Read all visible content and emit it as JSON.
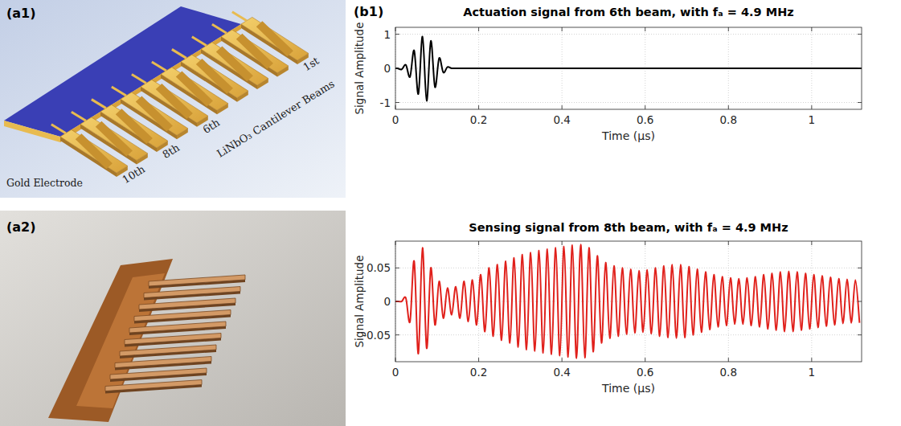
{
  "panels": {
    "a1": {
      "label": "(a1)",
      "electrode": "Gold Electrode",
      "beams_label": "LiNbO₃ Cantilever Beams",
      "beam_labels": [
        "10th",
        "8th",
        "6th",
        "1st"
      ]
    },
    "a2": {
      "label": "(a2)"
    },
    "b1": {
      "label": "(b1)"
    }
  },
  "chart_data": [
    {
      "type": "line",
      "title": "Actuation signal from 6th beam, with fₐ = 4.9 MHz",
      "xlabel": "Time (μs)",
      "ylabel": "Signal Amplitude",
      "x": [
        0,
        0.005,
        0.015,
        0.025,
        0.035,
        0.045,
        0.055,
        0.065,
        0.075,
        0.085,
        0.095,
        0.105,
        0.115,
        0.125,
        0.135,
        0.145,
        1.12
      ],
      "series": [
        {
          "color": "#000000",
          "values": [
            0,
            0,
            -0.03,
            0.1,
            -0.25,
            0.52,
            -0.75,
            0.93,
            -0.95,
            0.8,
            -0.55,
            0.3,
            -0.12,
            0.04,
            0,
            0,
            0
          ]
        }
      ],
      "xlim": [
        0,
        1.12
      ],
      "ylim": [
        -1.2,
        1.2
      ],
      "xticks": [
        0,
        0.2,
        0.4,
        0.6,
        0.8,
        1
      ],
      "yticks": [
        -1,
        0,
        1
      ],
      "grid": true
    },
    {
      "type": "line",
      "title": "Sensing signal from 8th beam, with fₐ = 4.9 MHz",
      "xlabel": "Time (μs)",
      "ylabel": "Signal Amplitude",
      "x": [
        0,
        0.005,
        0.015,
        0.025,
        0.035,
        0.045,
        0.055,
        0.065,
        0.075,
        0.085,
        0.095,
        0.105,
        0.115,
        0.125,
        0.135,
        0.145,
        0.155,
        0.165,
        0.175,
        0.185,
        0.195,
        0.205,
        0.215,
        0.225,
        0.235,
        0.245,
        0.255,
        0.265,
        0.275,
        0.285,
        0.295,
        0.305,
        0.315,
        0.325,
        0.335,
        0.345,
        0.355,
        0.365,
        0.375,
        0.385,
        0.395,
        0.405,
        0.415,
        0.425,
        0.435,
        0.445,
        0.455,
        0.465,
        0.475,
        0.485,
        0.495,
        0.505,
        0.515,
        0.525,
        0.535,
        0.545,
        0.555,
        0.565,
        0.575,
        0.585,
        0.595,
        0.605,
        0.615,
        0.625,
        0.635,
        0.645,
        0.655,
        0.665,
        0.675,
        0.685,
        0.695,
        0.705,
        0.715,
        0.725,
        0.735,
        0.745,
        0.755,
        0.765,
        0.775,
        0.785,
        0.795,
        0.805,
        0.815,
        0.825,
        0.835,
        0.845,
        0.855,
        0.865,
        0.875,
        0.885,
        0.895,
        0.905,
        0.915,
        0.925,
        0.935,
        0.945,
        0.955,
        0.965,
        0.975,
        0.985,
        0.995,
        1.005,
        1.015,
        1.025,
        1.035,
        1.045,
        1.055,
        1.065,
        1.075,
        1.085,
        1.095,
        1.105,
        1.115
      ],
      "series": [
        {
          "color": "#e0201b",
          "values": [
            0,
            0,
            0,
            0.005,
            -0.03,
            0.06,
            -0.078,
            0.08,
            -0.07,
            0.05,
            -0.035,
            0.03,
            -0.025,
            0.02,
            -0.02,
            0.022,
            -0.025,
            0.03,
            -0.03,
            0.032,
            -0.035,
            0.04,
            -0.045,
            0.05,
            -0.052,
            0.055,
            -0.058,
            0.06,
            -0.062,
            0.065,
            -0.068,
            0.07,
            -0.072,
            0.073,
            -0.074,
            0.076,
            -0.077,
            0.078,
            -0.079,
            0.08,
            -0.081,
            0.082,
            -0.083,
            0.084,
            -0.085,
            0.085,
            -0.084,
            0.08,
            -0.075,
            0.068,
            -0.062,
            0.058,
            -0.055,
            0.053,
            -0.052,
            0.05,
            -0.049,
            0.048,
            -0.047,
            0.046,
            -0.046,
            0.047,
            -0.048,
            0.05,
            -0.052,
            0.053,
            -0.054,
            0.055,
            -0.055,
            0.055,
            -0.054,
            0.052,
            -0.05,
            0.048,
            -0.046,
            0.044,
            -0.042,
            0.04,
            -0.038,
            0.037,
            -0.036,
            0.035,
            -0.034,
            0.034,
            -0.034,
            0.035,
            -0.036,
            0.037,
            -0.038,
            0.04,
            -0.041,
            0.042,
            -0.043,
            0.044,
            -0.045,
            0.045,
            -0.045,
            0.044,
            -0.043,
            0.042,
            -0.041,
            0.04,
            -0.039,
            0.038,
            -0.037,
            0.036,
            -0.035,
            0.034,
            -0.033,
            0.033,
            -0.032,
            0.032,
            -0.032
          ]
        }
      ],
      "xlim": [
        0,
        1.12
      ],
      "ylim": [
        -0.09,
        0.09
      ],
      "xticks": [
        0,
        0.2,
        0.4,
        0.6,
        0.8,
        1
      ],
      "yticks": [
        -0.05,
        0,
        0.05
      ],
      "grid": true
    }
  ]
}
